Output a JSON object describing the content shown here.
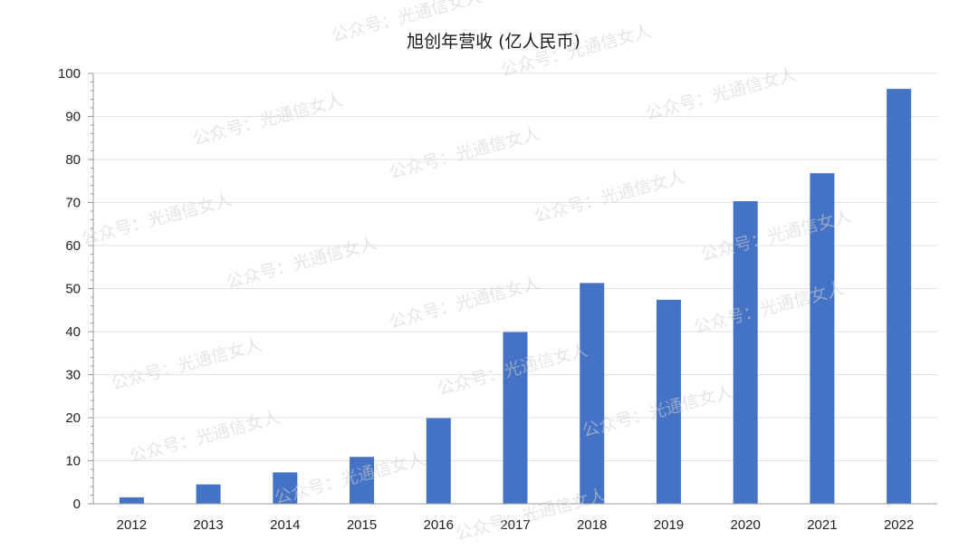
{
  "chart_data": {
    "type": "bar",
    "title": "旭创年营收 (亿人民币)",
    "xlabel": "",
    "ylabel": "",
    "categories": [
      "2012",
      "2013",
      "2014",
      "2015",
      "2016",
      "2017",
      "2018",
      "2019",
      "2020",
      "2021",
      "2022"
    ],
    "values": [
      1.5,
      4.5,
      7.3,
      10.9,
      19.9,
      39.9,
      51.3,
      47.4,
      70.3,
      76.8,
      96.4
    ],
    "ylim": [
      0,
      100
    ],
    "yticks": [
      "0",
      "10",
      "20",
      "30",
      "40",
      "50",
      "60",
      "70",
      "80",
      "90",
      "100"
    ],
    "grid": true,
    "legend": "none",
    "bar_color": "#4472c4"
  },
  "watermark": "公众号：光通信女人"
}
